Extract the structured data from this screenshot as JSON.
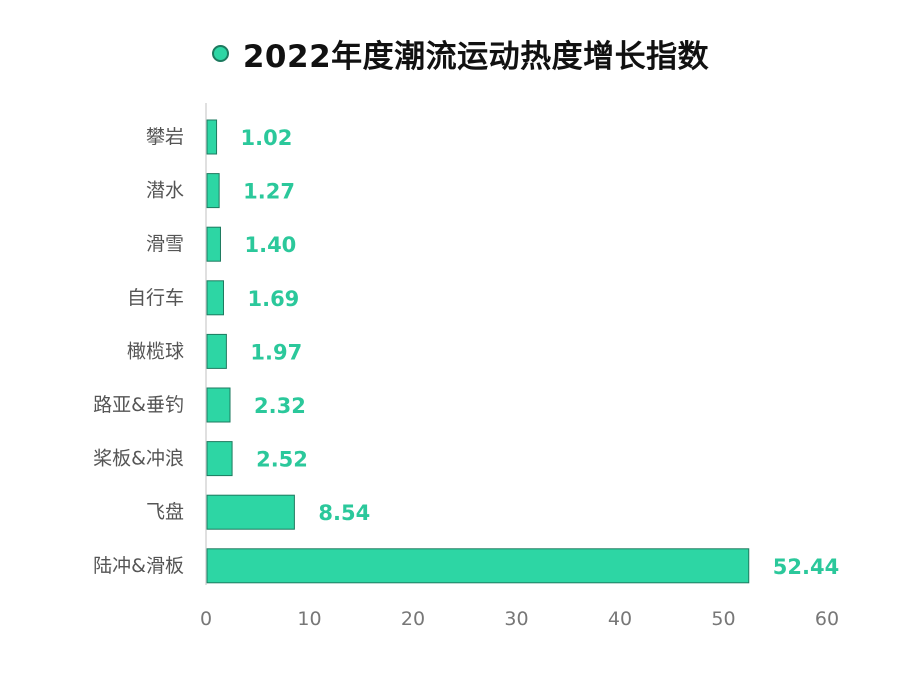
{
  "chart_data": {
    "type": "bar",
    "orientation": "horizontal",
    "title": "2022年度潮流运动热度增长指数",
    "categories": [
      "攀岩",
      "潜水",
      "滑雪",
      "自行车",
      "橄榄球",
      "路亚&垂钓",
      "桨板&冲浪",
      "飞盘",
      "陆冲&滑板"
    ],
    "values": [
      1.02,
      1.27,
      1.4,
      1.69,
      1.97,
      2.32,
      2.52,
      8.54,
      52.44
    ],
    "value_labels": [
      "1.02",
      "1.27",
      "1.40",
      "1.69",
      "1.97",
      "2.32",
      "2.52",
      "8.54",
      "52.44"
    ],
    "xlim": [
      0,
      60
    ],
    "xticks": [
      0,
      10,
      20,
      30,
      40,
      50,
      60
    ],
    "xlabel": "",
    "ylabel": "",
    "grid": false,
    "legend": "top-center",
    "colors": {
      "bar_fill": "#2dd6a4",
      "bar_stroke": "#1d7a5f",
      "value_text": "#2bc89b",
      "category_text": "#555555",
      "tick_text": "#777777",
      "axis_line": "#e0e0e0"
    }
  }
}
